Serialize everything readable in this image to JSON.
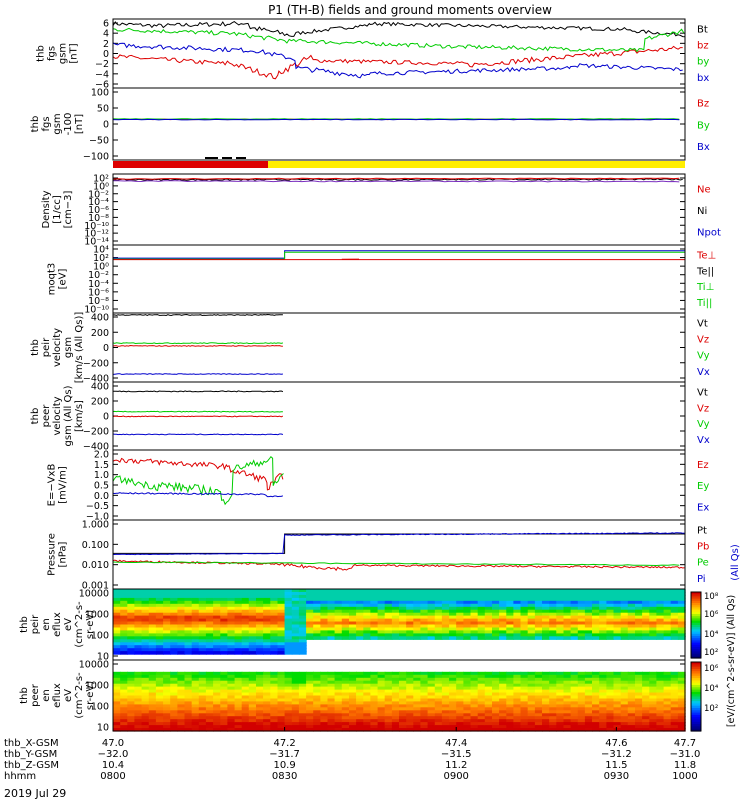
{
  "title": "P1 (TH-B) fields and ground moments overview",
  "date": "2019 Jul 29",
  "colors": {
    "black": "#000000",
    "red": "#dd0000",
    "green": "#00cc00",
    "blue": "#0000cc",
    "yellow": "#ffee00"
  },
  "chart_data": [
    {
      "id": "fgs_ylim",
      "type": "line",
      "ylabel_lines": [
        "thb",
        "fgs",
        "gsm",
        "[nT]"
      ],
      "yticks": [
        "6",
        "4",
        "2",
        "0",
        "−2",
        "−4",
        "−6"
      ],
      "ylim": [
        -6,
        6
      ],
      "legend": [
        {
          "label": "Bt",
          "color": "#000000"
        },
        {
          "label": "bz",
          "color": "#dd0000"
        },
        {
          "label": "by",
          "color": "#00cc00"
        },
        {
          "label": "bx",
          "color": "#0000cc"
        }
      ]
    },
    {
      "id": "fgs_fixed",
      "type": "line",
      "ylabel_lines": [
        "thb",
        "fgs",
        "gsm",
        "-100",
        "[nT]"
      ],
      "yticks": [
        "100",
        "50",
        "0",
        "−50",
        "−100"
      ],
      "ylim": [
        -130,
        100
      ],
      "legend": [
        {
          "label": "Bz",
          "color": "#dd0000"
        },
        {
          "label": "By",
          "color": "#00cc00"
        },
        {
          "label": "Bx",
          "color": "#0000cc"
        }
      ]
    },
    {
      "id": "density",
      "type": "line",
      "ylabel_lines": [
        "Density",
        "[1/cc]",
        "[cm−3]"
      ],
      "yticks": [
        "10²",
        "10⁰",
        "10⁻²",
        "10⁻⁴",
        "10⁻⁶",
        "10⁻⁸",
        "10⁻¹⁰",
        "10⁻¹²",
        "10⁻¹⁴"
      ],
      "legend": [
        {
          "label": "Ne",
          "color": "#dd0000"
        },
        {
          "label": "Ni",
          "color": "#000000"
        },
        {
          "label": "Npot",
          "color": "#0000cc"
        }
      ]
    },
    {
      "id": "temperature",
      "type": "line",
      "ylabel_lines": [
        "moqt3",
        "[eV]"
      ],
      "yticks": [
        "10⁴",
        "10²",
        "10⁰",
        "10⁻²",
        "10⁻⁴",
        "10⁻⁶",
        "10⁻⁸",
        "10⁻¹⁰"
      ],
      "legend": [
        {
          "label": "Te⊥",
          "color": "#dd0000"
        },
        {
          "label": "Te||",
          "color": "#000000"
        },
        {
          "label": "Ti⊥",
          "color": "#00cc00"
        },
        {
          "label": "Ti||",
          "color": "#00cc00"
        }
      ]
    },
    {
      "id": "peir_velocity",
      "type": "line",
      "ylabel_lines": [
        "thb",
        "peir",
        "velocity",
        "gsm",
        "[km/s (All Qs)]"
      ],
      "yticks": [
        "400",
        "200",
        "0",
        "−200",
        "−400"
      ],
      "ylim": [
        -450,
        420
      ],
      "legend": [
        {
          "label": "Vt",
          "color": "#000000"
        },
        {
          "label": "Vz",
          "color": "#dd0000"
        },
        {
          "label": "Vy",
          "color": "#00cc00"
        },
        {
          "label": "Vx",
          "color": "#0000cc"
        }
      ]
    },
    {
      "id": "peer_velocity",
      "type": "line",
      "ylabel_lines": [
        "thb",
        "peer",
        "velocity",
        "gsm (All Qs)",
        "[km/s]"
      ],
      "yticks": [
        "400",
        "200",
        "0",
        "−200",
        "−400"
      ],
      "ylim": [
        -450,
        420
      ],
      "legend": [
        {
          "label": "Vt",
          "color": "#000000"
        },
        {
          "label": "Vz",
          "color": "#dd0000"
        },
        {
          "label": "Vy",
          "color": "#00cc00"
        },
        {
          "label": "Vx",
          "color": "#0000cc"
        }
      ]
    },
    {
      "id": "efield",
      "type": "line",
      "ylabel_lines": [
        "E=−VxB",
        "[mV/m]"
      ],
      "yticks": [
        "2.0",
        "1.5",
        "1.0",
        "0.5",
        "0.0",
        "−0.5",
        "−1.0"
      ],
      "ylim": [
        -1,
        2
      ],
      "legend": [
        {
          "label": "Ez",
          "color": "#dd0000"
        },
        {
          "label": "Ey",
          "color": "#00cc00"
        },
        {
          "label": "Ex",
          "color": "#0000cc"
        }
      ]
    },
    {
      "id": "pressure",
      "type": "line",
      "ylabel_lines": [
        "Pressure",
        "[nPa]"
      ],
      "yticks": [
        "1.000",
        "0.100",
        "0.010",
        "0.001"
      ],
      "legend": [
        {
          "label": "Pt",
          "color": "#000000"
        },
        {
          "label": "Pb",
          "color": "#dd0000"
        },
        {
          "label": "Pe",
          "color": "#00cc00"
        },
        {
          "label": "Pi",
          "color": "#0000cc"
        }
      ],
      "legend_note": "(All Qs)"
    },
    {
      "id": "peir_eflux",
      "type": "heatmap",
      "ylabel_lines": [
        "thb",
        "peir",
        "en",
        "eflux",
        "eV",
        "(cm^2-s-",
        "sr-eV)"
      ],
      "yticks": [
        "10000",
        "1000",
        "100",
        "10"
      ]
    },
    {
      "id": "peer_eflux",
      "type": "heatmap",
      "ylabel_lines": [
        "thb",
        "peer",
        "en",
        "eflux",
        "eV",
        "(cm^2-s-",
        "sr-eV)"
      ],
      "yticks": [
        "10000",
        "1000",
        "100",
        "10"
      ]
    }
  ],
  "colorbar": {
    "labels": [
      "10⁸",
      "10⁶",
      "10⁴",
      "10²",
      "10⁶",
      "10⁴",
      "10²"
    ],
    "unit": "[eV/(cm^2-s-sr-eV)] (All Qs)"
  },
  "xaxis": {
    "row_labels": [
      "thb_X-GSM",
      "thb_Y-GSM",
      "thb_Z-GSM",
      "hhmm"
    ],
    "columns": [
      {
        "x": "47.0",
        "y": "−32.0",
        "z": "10.4",
        "hhmm": "0800"
      },
      {
        "x": "47.2",
        "y": "−31.7",
        "z": "10.9",
        "hhmm": "0830"
      },
      {
        "x": "47.4",
        "y": "−31.5",
        "z": "11.2",
        "hhmm": "0900"
      },
      {
        "x": "47.6",
        "y": "−31.2",
        "z": "11.5",
        "hhmm": "0930"
      },
      {
        "x": "47.7",
        "y": "−31.0",
        "z": "11.8",
        "hhmm": "1000"
      }
    ]
  }
}
